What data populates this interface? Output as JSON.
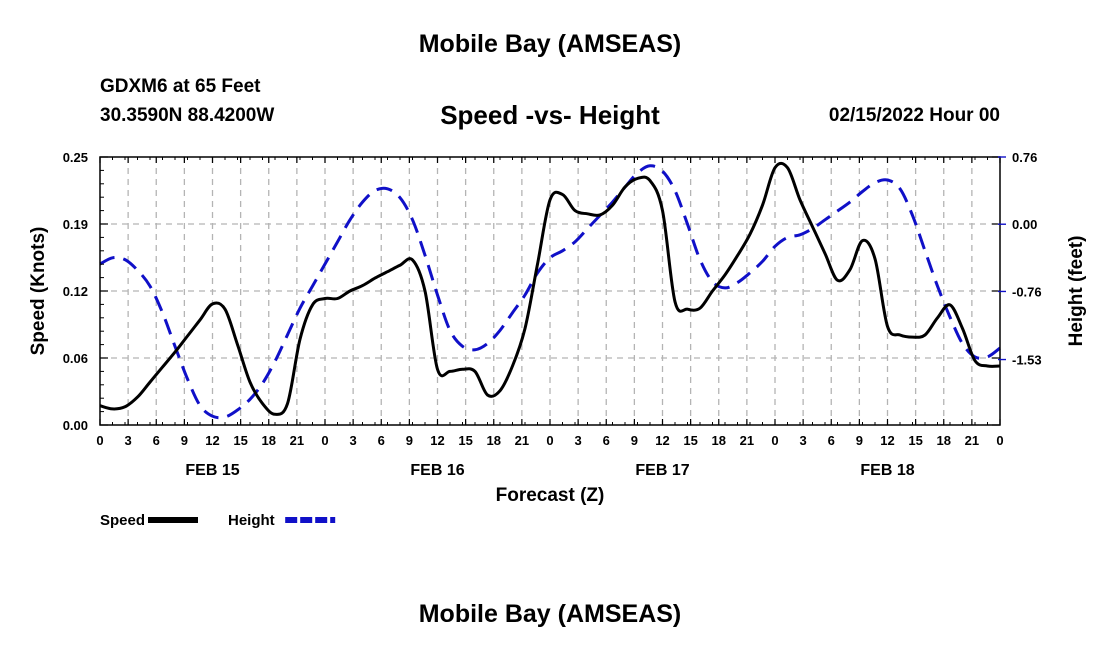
{
  "header": {
    "title": "Mobile Bay (AMSEAS)",
    "station": "GDXM6 at 65 Feet",
    "coordinates": "30.3590N  88.4200W",
    "chart_title": "Speed -vs- Height",
    "datetime": "02/15/2022 Hour 00"
  },
  "footer": {
    "title": "Mobile Bay (AMSEAS)"
  },
  "colors": {
    "speed": "#000000",
    "height": "#1010c8",
    "grid": "#b4b4b4"
  },
  "chart_data": {
    "type": "line",
    "title": "Speed -vs- Height",
    "xlabel": "Forecast (Z)",
    "ylabel": "Speed (Knots)",
    "y2label": "Height (feet)",
    "xlim": [
      0,
      72
    ],
    "ylim": [
      0.0,
      0.25
    ],
    "y2lim": [
      -2.27,
      0.76
    ],
    "yticks": [
      "0.00",
      "0.06",
      "0.12",
      "0.19",
      "0.25"
    ],
    "y2ticks": [
      "-1.53",
      "-0.76",
      "0.00",
      "0.76"
    ],
    "xtick_labels": [
      "0",
      "3",
      "6",
      "9",
      "12",
      "15",
      "18",
      "21",
      "0",
      "3",
      "6",
      "9",
      "12",
      "15",
      "18",
      "21",
      "0",
      "3",
      "6",
      "9",
      "12",
      "15",
      "18",
      "21",
      "0",
      "3",
      "6",
      "9",
      "12",
      "15",
      "18",
      "21",
      "0"
    ],
    "date_labels": [
      {
        "x": 9,
        "label": "FEB 15"
      },
      {
        "x": 27,
        "label": "FEB 16"
      },
      {
        "x": 45,
        "label": "FEB 17"
      },
      {
        "x": 63,
        "label": "FEB 18"
      }
    ],
    "grid": true,
    "legend": "bottom-left",
    "series": [
      {
        "name": "Speed",
        "axis": "left",
        "style": "solid",
        "x": [
          0,
          1,
          2,
          3,
          4,
          5,
          6,
          7,
          8,
          9,
          10,
          11,
          12,
          13,
          14,
          15,
          16,
          17,
          18,
          19,
          20,
          21,
          22,
          23,
          24,
          25,
          26,
          27,
          28,
          29,
          30,
          31,
          32,
          33,
          34,
          35,
          36,
          37,
          38,
          39,
          40,
          41,
          42,
          43,
          44,
          45,
          46,
          47,
          48,
          49,
          50,
          51,
          52,
          53,
          54,
          55,
          56,
          57,
          58,
          59,
          60,
          61,
          62,
          63,
          64,
          65,
          66,
          67,
          68,
          69,
          70,
          71,
          72
        ],
        "values": [
          0.018,
          0.015,
          0.017,
          0.026,
          0.04,
          0.054,
          0.068,
          0.083,
          0.098,
          0.113,
          0.108,
          0.075,
          0.04,
          0.02,
          0.01,
          0.02,
          0.08,
          0.112,
          0.118,
          0.118,
          0.125,
          0.13,
          0.137,
          0.143,
          0.149,
          0.154,
          0.125,
          0.052,
          0.05,
          0.052,
          0.05,
          0.028,
          0.032,
          0.055,
          0.09,
          0.15,
          0.21,
          0.215,
          0.2,
          0.197,
          0.196,
          0.205,
          0.222,
          0.23,
          0.228,
          0.2,
          0.115,
          0.108,
          0.109,
          0.125,
          0.14,
          0.158,
          0.178,
          0.205,
          0.24,
          0.24,
          0.21,
          0.185,
          0.16,
          0.135,
          0.145,
          0.172,
          0.155,
          0.092,
          0.084,
          0.082,
          0.084,
          0.1,
          0.112,
          0.09,
          0.06,
          0.055,
          0.055
        ]
      },
      {
        "name": "Height",
        "axis": "right",
        "style": "dashed",
        "x": [
          0,
          1,
          2,
          3,
          4,
          5,
          6,
          7,
          8,
          9,
          10,
          11,
          12,
          13,
          14,
          15,
          16,
          17,
          18,
          19,
          20,
          21,
          22,
          23,
          24,
          25,
          26,
          27,
          28,
          29,
          30,
          31,
          32,
          33,
          34,
          35,
          36,
          37,
          38,
          39,
          40,
          41,
          42,
          43,
          44,
          45,
          46,
          47,
          48,
          49,
          50,
          51,
          52,
          53,
          54,
          55,
          56,
          57,
          58,
          59,
          60,
          61,
          62,
          63,
          64,
          65,
          66,
          67,
          68,
          69,
          70,
          71,
          72
        ],
        "values": [
          -0.45,
          -0.38,
          -0.4,
          -0.52,
          -0.7,
          -1.0,
          -1.38,
          -1.75,
          -2.05,
          -2.17,
          -2.18,
          -2.1,
          -1.98,
          -1.8,
          -1.55,
          -1.25,
          -0.95,
          -0.7,
          -0.45,
          -0.2,
          0.05,
          0.25,
          0.38,
          0.4,
          0.3,
          0.05,
          -0.35,
          -0.8,
          -1.2,
          -1.38,
          -1.42,
          -1.35,
          -1.2,
          -1.0,
          -0.8,
          -0.55,
          -0.38,
          -0.3,
          -0.2,
          -0.05,
          0.1,
          0.25,
          0.42,
          0.58,
          0.66,
          0.6,
          0.38,
          0.0,
          -0.4,
          -0.65,
          -0.72,
          -0.66,
          -0.55,
          -0.42,
          -0.25,
          -0.15,
          -0.12,
          -0.05,
          0.05,
          0.15,
          0.25,
          0.37,
          0.47,
          0.5,
          0.4,
          0.1,
          -0.3,
          -0.7,
          -1.05,
          -1.35,
          -1.5,
          -1.5,
          -1.4
        ]
      }
    ],
    "legend_entries": [
      {
        "label": "Speed",
        "style": "solid"
      },
      {
        "label": "Height",
        "style": "dashed"
      }
    ]
  }
}
